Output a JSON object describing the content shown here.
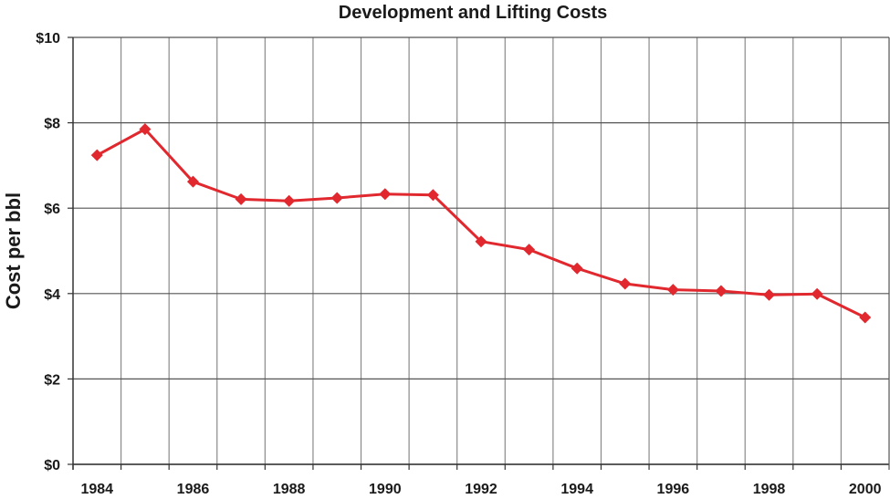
{
  "chart_data": {
    "type": "line",
    "title": "Development and Lifting Costs",
    "xlabel": "",
    "ylabel": "Cost per bbl",
    "categories": [
      "1984",
      "1985",
      "1986",
      "1987",
      "1988",
      "1989",
      "1990",
      "1991",
      "1992",
      "1993",
      "1994",
      "1995",
      "1996",
      "1997",
      "1998",
      "1999",
      "2000"
    ],
    "x_tick_labels": [
      "1984",
      "1986",
      "1988",
      "1990",
      "1992",
      "1994",
      "1996",
      "1998",
      "2000"
    ],
    "y_tick_labels": [
      "$0",
      "$2",
      "$4",
      "$6",
      "$8",
      "$10"
    ],
    "y_ticks": [
      0,
      2,
      4,
      6,
      8,
      10
    ],
    "ylim": [
      0,
      10
    ],
    "grid": true,
    "legend": "none",
    "series": [
      {
        "name": "Development and Lifting Costs",
        "color": "#e0282e",
        "marker": "diamond",
        "values": [
          7.24,
          7.85,
          6.62,
          6.21,
          6.17,
          6.24,
          6.33,
          6.31,
          5.22,
          5.03,
          4.59,
          4.23,
          4.09,
          4.06,
          3.97,
          3.99,
          3.44
        ]
      }
    ]
  }
}
